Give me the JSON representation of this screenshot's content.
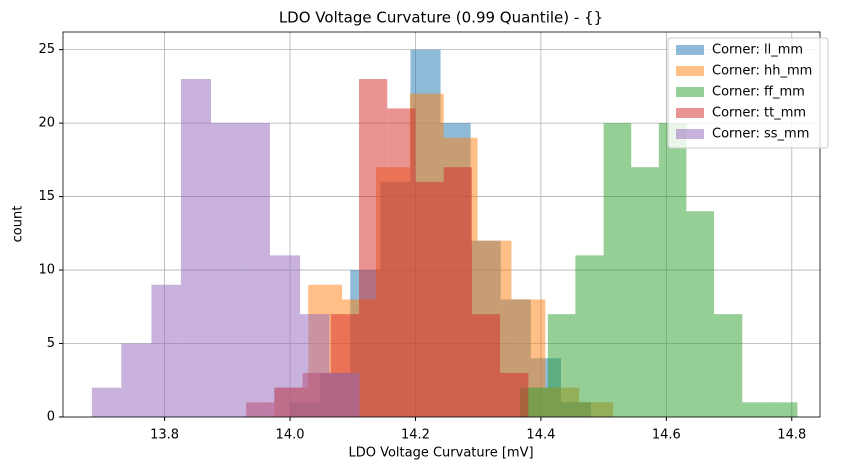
{
  "chart_data": {
    "type": "histogram",
    "title": "LDO Voltage Curvature (0.99 Quantile) - {}",
    "x_label": "LDO Voltage Curvature [mV]",
    "y_label": "count",
    "xlim": [
      13.638,
      14.845
    ],
    "ylim": [
      0,
      26.2
    ],
    "xticks": [
      13.8,
      {
        "value": 14.0,
        "label": "14.0"
      },
      14.2,
      14.4,
      14.6,
      14.8
    ],
    "yticks": [
      0,
      5,
      10,
      15,
      20,
      25
    ],
    "grid": true,
    "legend": "upper right",
    "opacity": 0.5,
    "series": [
      {
        "name": "Corner: ll_mm",
        "color": "#1f77b4",
        "bins": [
          14.0,
          14.048,
          14.096,
          14.144,
          14.192,
          14.24,
          14.288,
          14.336,
          14.384,
          14.432,
          14.48
        ],
        "values": [
          1,
          3,
          10,
          16,
          25,
          20,
          12,
          8,
          4,
          1
        ]
      },
      {
        "name": "Corner: hh_mm",
        "color": "#ff7f0e",
        "bins": [
          13.975,
          14.029,
          14.083,
          14.137,
          14.191,
          14.245,
          14.299,
          14.353,
          14.407,
          14.461,
          14.515
        ],
        "values": [
          2,
          9,
          8,
          17,
          22,
          19,
          12,
          8,
          2,
          1
        ]
      },
      {
        "name": "Corner: ff_mm",
        "color": "#2ca02c",
        "bins": [
          14.367,
          14.411,
          14.455,
          14.5,
          14.544,
          14.588,
          14.632,
          14.676,
          14.721,
          14.765,
          14.809
        ],
        "values": [
          2,
          7,
          11,
          20,
          17,
          20,
          14,
          7,
          1,
          1
        ]
      },
      {
        "name": "Corner: tt_mm",
        "color": "#d62728",
        "bins": [
          13.93,
          13.975,
          14.02,
          14.065,
          14.11,
          14.155,
          14.2,
          14.245,
          14.29,
          14.335,
          14.38
        ],
        "values": [
          1,
          2,
          3,
          7,
          23,
          21,
          16,
          17,
          7,
          3
        ]
      },
      {
        "name": "Corner: ss_mm",
        "color": "#9467bd",
        "bins": [
          13.684,
          13.731,
          13.779,
          13.826,
          13.874,
          13.921,
          13.968,
          14.016,
          14.063,
          14.111
        ],
        "values": [
          2,
          5,
          9,
          23,
          20,
          20,
          11,
          7,
          3
        ]
      }
    ]
  }
}
